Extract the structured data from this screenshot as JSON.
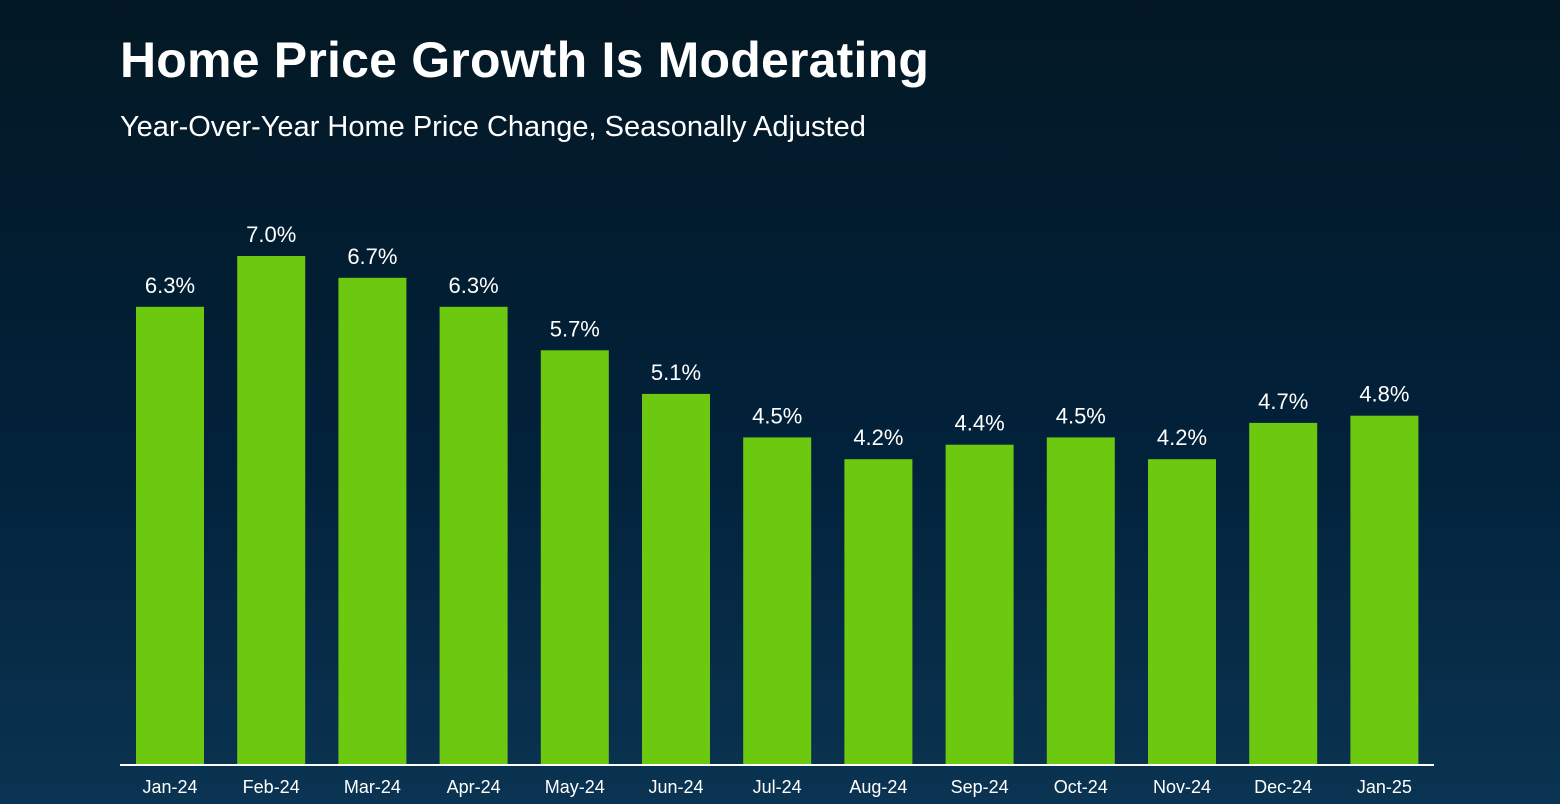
{
  "header": {
    "title": "Home Price Growth Is Moderating",
    "subtitle": "Year-Over-Year Home Price Change, Seasonally Adjusted"
  },
  "colors": {
    "bar": "#6cc90f",
    "axis": "#ffffff",
    "text": "#ffffff"
  },
  "chart_data": {
    "type": "bar",
    "title": "Home Price Growth Is Moderating",
    "subtitle": "Year-Over-Year Home Price Change, Seasonally Adjusted",
    "categories": [
      "Jan-24",
      "Feb-24",
      "Mar-24",
      "Apr-24",
      "May-24",
      "Jun-24",
      "Jul-24",
      "Aug-24",
      "Sep-24",
      "Oct-24",
      "Nov-24",
      "Dec-24",
      "Jan-25"
    ],
    "values": [
      6.3,
      7.0,
      6.7,
      6.3,
      5.7,
      5.1,
      4.5,
      4.2,
      4.4,
      4.5,
      4.2,
      4.7,
      4.8
    ],
    "value_labels": [
      "6.3%",
      "7.0%",
      "6.7%",
      "6.3%",
      "5.7%",
      "5.1%",
      "4.5%",
      "4.2%",
      "4.4%",
      "4.5%",
      "4.2%",
      "4.7%",
      "4.8%"
    ],
    "xlabel": "",
    "ylabel": "",
    "ylim": [
      0,
      7.0
    ],
    "grid": false,
    "legend": false
  }
}
